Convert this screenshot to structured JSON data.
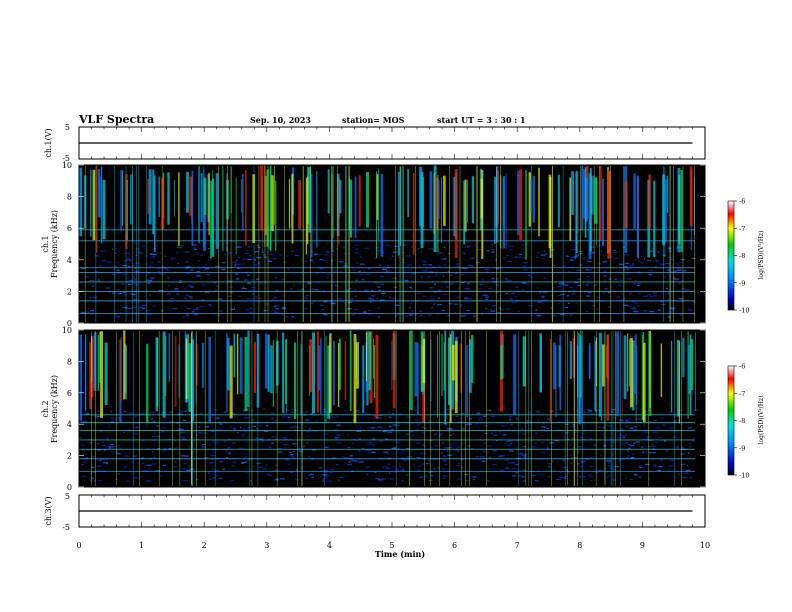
{
  "header": {
    "title": "VLF Spectra",
    "date": "Sep. 10, 2023",
    "station": "station= MOS",
    "start_ut": "start  UT =   3  : 30 : 1"
  },
  "chart_data": [
    {
      "type": "line",
      "panel": "ch1-voltage",
      "ylabel": "ch.1(V)",
      "ylim": [
        -5,
        5
      ],
      "yticks": [
        "5",
        "-5"
      ],
      "x": [
        0,
        9.8
      ],
      "series": [
        {
          "values": [
            0,
            0
          ]
        }
      ]
    },
    {
      "type": "heatmap",
      "panel": "ch1-spectrogram",
      "ylabel": "ch.1 Frequency (kHz)",
      "ylabel_top": "ch.1",
      "ylabel_bottom": "Frequency (kHz)",
      "ylim": [
        0,
        10
      ],
      "yticks": [
        "0",
        "2",
        "4",
        "6",
        "8",
        "10"
      ],
      "xlim": [
        0,
        10
      ],
      "colorbar": {
        "label": "log(PSD)(V²/Hz)",
        "range": [
          -10,
          -6
        ],
        "ticks": [
          "-6",
          "-7",
          "-8",
          "-9",
          "-10"
        ]
      },
      "narrowband_lines_khz": [
        0.6,
        1.4,
        2.0,
        2.6,
        3.2,
        3.5,
        5.2,
        5.9
      ]
    },
    {
      "type": "heatmap",
      "panel": "ch2-spectrogram",
      "ylabel": "ch.2 Frequency (kHz)",
      "ylabel_top": "ch.2",
      "ylabel_bottom": "Frequency (kHz)",
      "ylim": [
        0,
        10
      ],
      "yticks": [
        "0",
        "2",
        "4",
        "6",
        "8",
        "10"
      ],
      "xlim": [
        0,
        10
      ],
      "colorbar": {
        "label": "log(PSD)(V²/Hz)",
        "range": [
          -10,
          -6
        ],
        "ticks": [
          "-6",
          "-7",
          "-8",
          "-9",
          "-10"
        ]
      },
      "narrowband_lines_khz": [
        1.0,
        1.8,
        2.4,
        3.0,
        3.6,
        4.1,
        4.6
      ]
    },
    {
      "type": "line",
      "panel": "ch3-voltage",
      "ylabel": "ch.3(V)",
      "ylim": [
        -5,
        5
      ],
      "yticks": [
        "5",
        "-5"
      ],
      "x": [
        0,
        9.8
      ],
      "series": [
        {
          "values": [
            0,
            0
          ]
        }
      ],
      "xlabel": "Time (min)",
      "xlim": [
        0,
        10
      ],
      "xticks": [
        "0",
        "1",
        "2",
        "3",
        "4",
        "5",
        "6",
        "7",
        "8",
        "9",
        "10"
      ]
    }
  ]
}
